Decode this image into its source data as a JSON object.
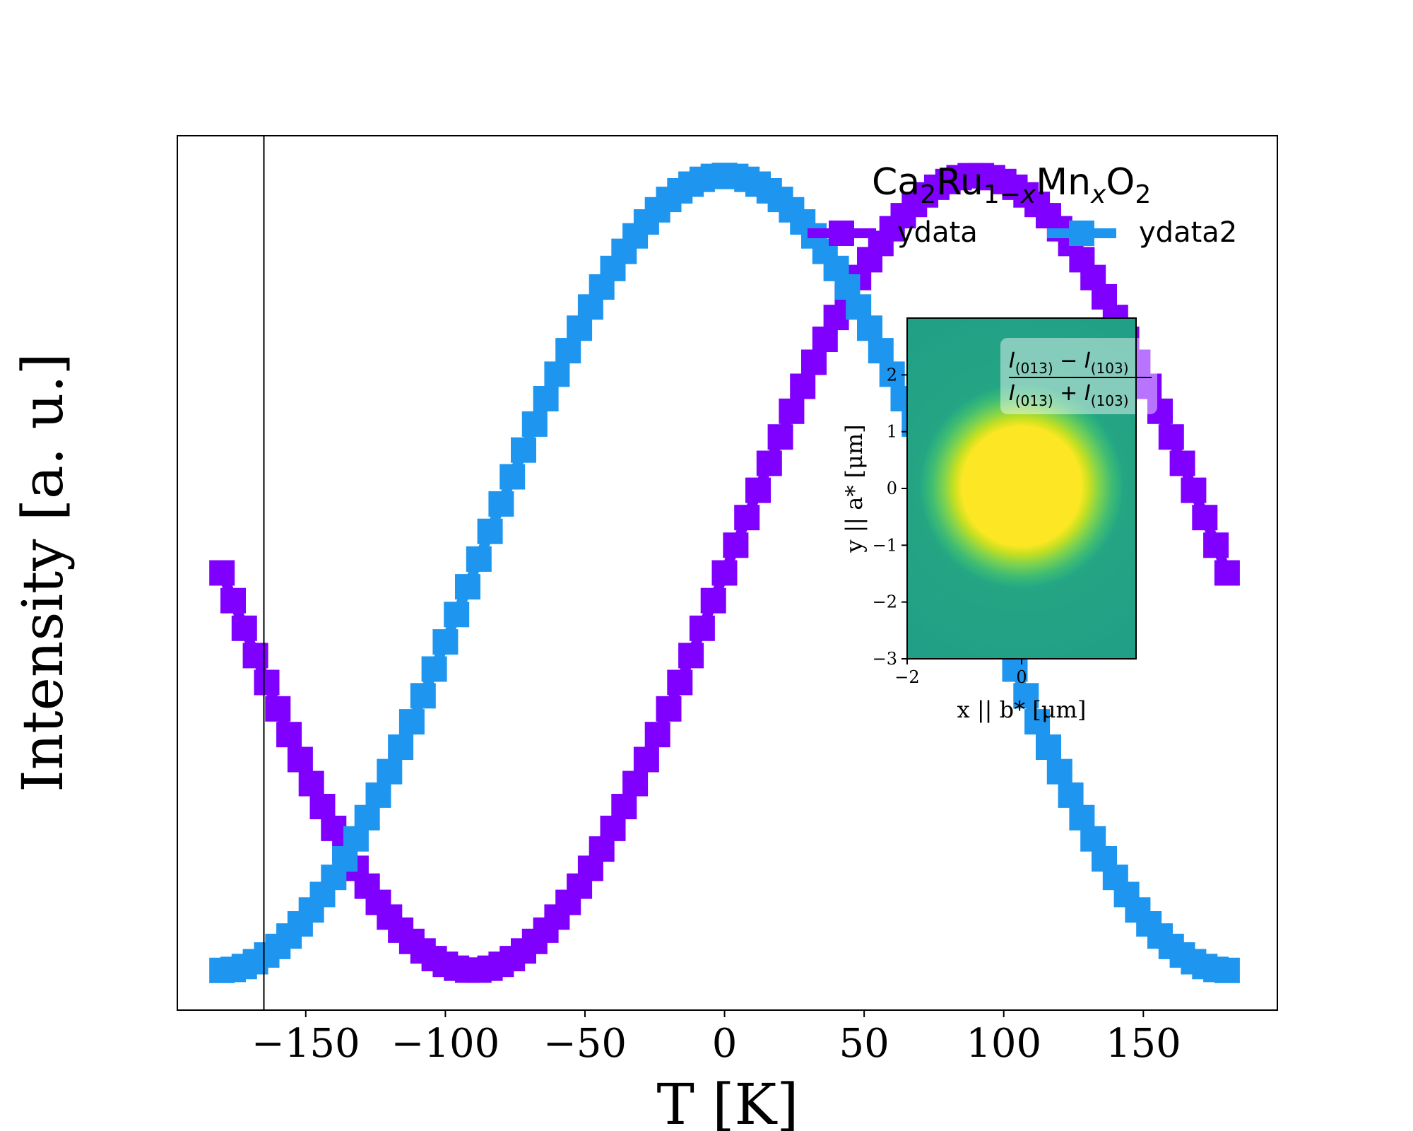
{
  "chart_data": [
    {
      "type": "line",
      "xlabel": "T [K]",
      "ylabel": "Intensity [a. u.]",
      "xlim": [
        -196,
        198
      ],
      "ylim": [
        -1.1,
        1.1
      ],
      "x_ticks": [
        -150,
        -100,
        -50,
        0,
        50,
        100,
        150
      ],
      "x_tick_labels": [
        "−150",
        "−100",
        "−50",
        "0",
        "50",
        "100",
        "150"
      ],
      "y_ticks_visible": false,
      "vertical_line_x": -165,
      "legend": {
        "title": "Ca2Ru1−xMnxO2",
        "placement": "top-right",
        "ncol": 2,
        "entries": [
          "ydata",
          "ydata2"
        ]
      },
      "series": [
        {
          "name": "ydata",
          "color": "#7f00ff",
          "marker": "square-step",
          "x_range": [
            -180,
            180
          ],
          "x_step": 4,
          "function": "sin(x degrees)",
          "sample_values": [
            {
              "x": -180,
              "y": 0.0
            },
            {
              "x": -90,
              "y": -1.0
            },
            {
              "x": 0,
              "y": 0.0
            },
            {
              "x": 90,
              "y": 1.0
            },
            {
              "x": 180,
              "y": 0.0
            }
          ]
        },
        {
          "name": "ydata2",
          "color": "#1e96f0",
          "marker": "square-step",
          "x_range": [
            -180,
            180
          ],
          "x_step": 4,
          "function": "cos(x degrees)",
          "sample_values": [
            {
              "x": -180,
              "y": -1.0
            },
            {
              "x": -90,
              "y": 0.0
            },
            {
              "x": 0,
              "y": 1.0
            },
            {
              "x": 90,
              "y": 0.0
            },
            {
              "x": 180,
              "y": -1.0
            }
          ]
        }
      ]
    },
    {
      "type": "heatmap",
      "xlabel": "x || b* [μm]",
      "ylabel": "y || a* [μm]",
      "xlim": [
        -2,
        2
      ],
      "ylim": [
        -3,
        3
      ],
      "x_ticks": [
        -2,
        0
      ],
      "x_tick_labels": [
        "−2",
        "0"
      ],
      "y_ticks": [
        -3,
        -2,
        -1,
        0,
        1,
        2
      ],
      "y_tick_labels": [
        "−3",
        "−2",
        "−1",
        "0",
        "1",
        "2"
      ],
      "colormap": "viridis",
      "annotation": "(I(013) − I(103)) / (I(013) + I(103))",
      "feature": {
        "shape": "disk",
        "center": [
          0,
          0
        ],
        "radius": 1.05,
        "value": "max"
      },
      "background_value": "mid"
    }
  ]
}
